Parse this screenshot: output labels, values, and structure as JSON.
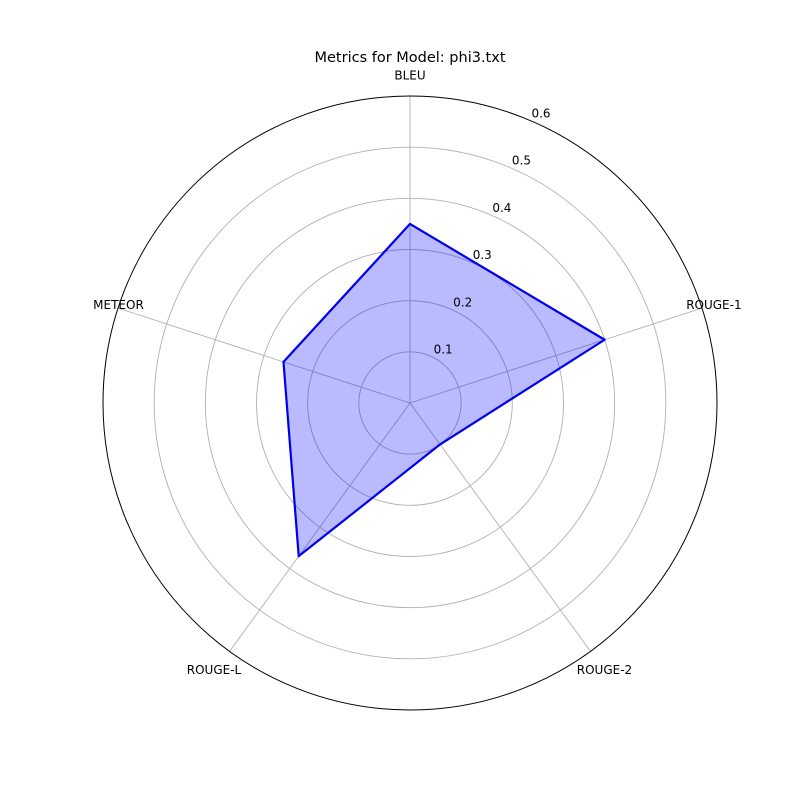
{
  "chart_data": {
    "type": "radar",
    "title": "Metrics for Model: phi3.txt",
    "categories": [
      "BLEU",
      "ROUGE-1",
      "ROUGE-2",
      "ROUGE-L",
      "METEOR"
    ],
    "series": [
      {
        "values": [
          0.35,
          0.4,
          0.1,
          0.37,
          0.26
        ]
      }
    ],
    "rlim": [
      0,
      0.6
    ],
    "rticks": [
      0.1,
      0.2,
      0.3,
      0.4,
      0.5,
      0.6
    ],
    "grid": true,
    "colors": {
      "line": "#0000ee",
      "fill": "#0000ff"
    }
  }
}
